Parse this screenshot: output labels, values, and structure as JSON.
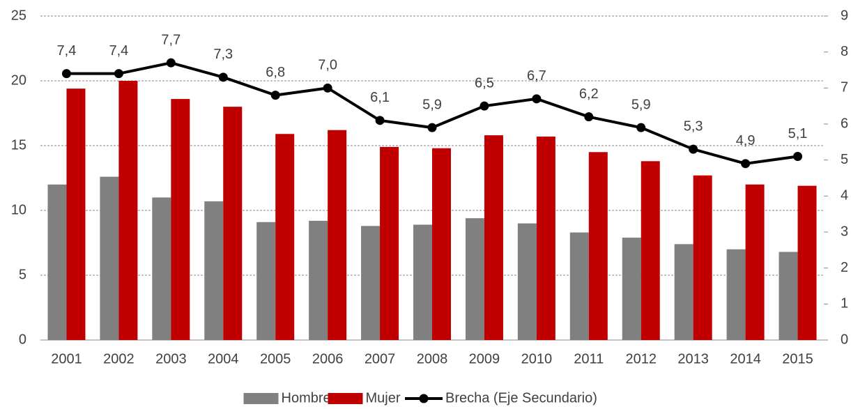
{
  "chart_data": {
    "type": "bar",
    "categories": [
      "2001",
      "2002",
      "2003",
      "2004",
      "2005",
      "2006",
      "2007",
      "2008",
      "2009",
      "2010",
      "2011",
      "2012",
      "2013",
      "2014",
      "2015"
    ],
    "series": [
      {
        "name": "Hombre",
        "color": "#808080",
        "values": [
          12.0,
          12.6,
          11.0,
          10.7,
          9.1,
          9.2,
          8.8,
          8.9,
          9.4,
          9.0,
          8.3,
          7.9,
          7.4,
          7.0,
          6.8
        ]
      },
      {
        "name": "Mujer",
        "color": "#c00000",
        "values": [
          19.4,
          20.0,
          18.6,
          18.0,
          15.9,
          16.2,
          14.9,
          14.8,
          15.8,
          15.7,
          14.5,
          13.8,
          12.7,
          12.0,
          11.9
        ]
      },
      {
        "name": "Brecha (Eje Secundario)",
        "color": "#000000",
        "type": "line",
        "axis": "y2",
        "values": [
          7.4,
          7.4,
          7.7,
          7.3,
          6.8,
          7.0,
          6.1,
          5.9,
          6.5,
          6.7,
          6.2,
          5.9,
          5.3,
          4.9,
          5.1
        ],
        "value_labels": [
          "7,4",
          "7,4",
          "7,7",
          "7,3",
          "6,8",
          "7,0",
          "6,1",
          "5,9",
          "6,5",
          "6,7",
          "6,2",
          "5,9",
          "5,3",
          "4,9",
          "5,1"
        ]
      }
    ],
    "ylim": [
      0,
      25
    ],
    "yticks": [
      0,
      5,
      10,
      15,
      20,
      25
    ],
    "y2lim": [
      0,
      9
    ],
    "y2ticks": [
      0,
      1,
      2,
      3,
      4,
      5,
      6,
      7,
      8,
      9
    ],
    "grid": true,
    "legend": "bottom"
  }
}
